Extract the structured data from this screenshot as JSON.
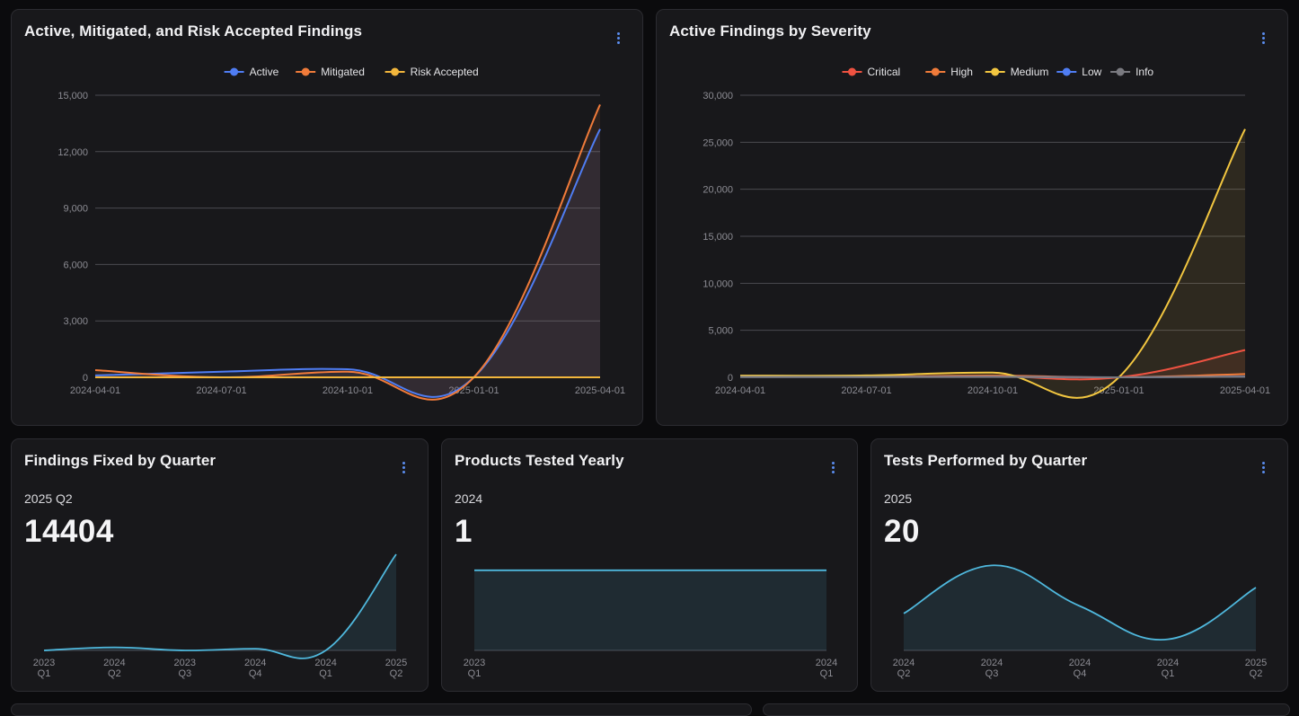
{
  "cards": {
    "c1": {
      "title": "Active, Mitigated, and Risk Accepted Findings"
    },
    "c2": {
      "title": "Active Findings by Severity"
    },
    "c3": {
      "title": "Findings Fixed by Quarter",
      "subtitle": "2025 Q2",
      "value": "14404"
    },
    "c4": {
      "title": "Products Tested Yearly",
      "subtitle": "2024",
      "value": "1"
    },
    "c5": {
      "title": "Tests Performed by Quarter",
      "subtitle": "2025",
      "value": "20"
    }
  },
  "icons": {
    "menu": "kebab-menu-icon"
  },
  "colors": {
    "active": "#4f7df3",
    "mitigated": "#f07b3a",
    "risk_accepted": "#f2b63c",
    "critical": "#ee5241",
    "high": "#f07b3a",
    "medium": "#f2c640",
    "low": "#4f7df3",
    "info": "#7a7a80",
    "spark": "#4fb8dd"
  },
  "chart_data": [
    {
      "id": "c1",
      "type": "area",
      "title": "Active, Mitigated, and Risk Accepted Findings",
      "x": [
        "2024-04-01",
        "2024-07-01",
        "2024-10-01",
        "2025-01-01",
        "2025-04-01"
      ],
      "ylim": [
        0,
        15000
      ],
      "yticks": [
        "0",
        "3,000",
        "6,000",
        "9,000",
        "12,000",
        "15,000"
      ],
      "legend": "top-center",
      "series": [
        {
          "name": "Active",
          "color": "#4f7df3",
          "values": [
            100,
            300,
            430,
            0,
            13200
          ]
        },
        {
          "name": "Mitigated",
          "color": "#f07b3a",
          "values": [
            380,
            0,
            300,
            0,
            14500
          ]
        },
        {
          "name": "Risk Accepted",
          "color": "#f2b63c",
          "values": [
            0,
            0,
            0,
            0,
            0
          ]
        }
      ]
    },
    {
      "id": "c2",
      "type": "area",
      "title": "Active Findings by Severity",
      "x": [
        "2024-04-01",
        "2024-07-01",
        "2024-10-01",
        "2025-01-01",
        "2025-04-01"
      ],
      "ylim": [
        0,
        30000
      ],
      "yticks": [
        "0",
        "5,000",
        "10,000",
        "15,000",
        "20,000",
        "25,000",
        "30,000"
      ],
      "legend": "top-center",
      "series": [
        {
          "name": "Critical",
          "color": "#ee5241",
          "values": [
            60,
            50,
            120,
            0,
            2900
          ]
        },
        {
          "name": "High",
          "color": "#f07b3a",
          "values": [
            70,
            60,
            180,
            0,
            350
          ]
        },
        {
          "name": "Medium",
          "color": "#f2c640",
          "values": [
            180,
            200,
            500,
            0,
            26400
          ]
        },
        {
          "name": "Low",
          "color": "#4f7df3",
          "values": [
            40,
            30,
            60,
            0,
            80
          ]
        },
        {
          "name": "Info",
          "color": "#7a7a80",
          "values": [
            20,
            20,
            30,
            0,
            60
          ]
        }
      ]
    },
    {
      "id": "c3",
      "type": "area",
      "title": "Findings Fixed by Quarter",
      "x": [
        [
          "2023",
          "Q1"
        ],
        [
          "2024",
          "Q2"
        ],
        [
          "2023",
          "Q3"
        ],
        [
          "2024",
          "Q4"
        ],
        [
          "2024",
          "Q1"
        ],
        [
          "2025",
          "Q2"
        ]
      ],
      "ylim": [
        0,
        14404
      ],
      "values": [
        0,
        450,
        0,
        250,
        0,
        14404
      ]
    },
    {
      "id": "c4",
      "type": "area",
      "title": "Products Tested Yearly",
      "x": [
        [
          "2023",
          "Q1"
        ],
        [
          "2024",
          "Q1"
        ]
      ],
      "ylim": [
        0,
        1.2
      ],
      "values": [
        1,
        1
      ]
    },
    {
      "id": "c5",
      "type": "area",
      "title": "Tests Performed by Quarter",
      "x": [
        [
          "2024",
          "Q2"
        ],
        [
          "2024",
          "Q3"
        ],
        [
          "2024",
          "Q4"
        ],
        [
          "2024",
          "Q1"
        ],
        [
          "2025",
          "Q2"
        ]
      ],
      "ylim": [
        0,
        26
      ],
      "values": [
        10,
        23,
        12,
        3,
        17
      ]
    }
  ]
}
